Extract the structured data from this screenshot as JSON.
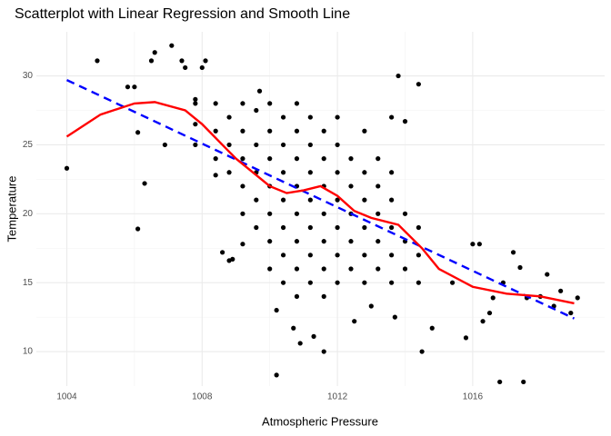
{
  "chart_data": {
    "type": "scatter",
    "title": "Scatterplot with Linear Regression and Smooth Line",
    "x_label": "Atmospheric Pressure",
    "y_label": "Temperature",
    "xlim": [
      1003.1,
      1019.9
    ],
    "ylim": [
      7.5,
      33.2
    ],
    "xticks": [
      1004,
      1008,
      1012,
      1016
    ],
    "yticks": [
      10,
      15,
      20,
      25,
      30
    ],
    "grid": true,
    "point_color": "#000000",
    "points": [
      [
        1004,
        23.3
      ],
      [
        1004.9,
        31.1
      ],
      [
        1005.8,
        29.2
      ],
      [
        1006,
        29.2
      ],
      [
        1006.1,
        25.9
      ],
      [
        1006.1,
        18.9
      ],
      [
        1006.3,
        22.2
      ],
      [
        1006.5,
        31.1
      ],
      [
        1006.6,
        31.7
      ],
      [
        1006.9,
        25
      ],
      [
        1007.1,
        32.2
      ],
      [
        1007.4,
        31.1
      ],
      [
        1007.5,
        30.6
      ],
      [
        1007.8,
        28.3
      ],
      [
        1008,
        30.6
      ],
      [
        1008.1,
        31.1
      ],
      [
        1008.4,
        22.8
      ],
      [
        1008.6,
        17.2
      ],
      [
        1008.9,
        16.7
      ],
      [
        1008.8,
        16.6
      ],
      [
        1009.2,
        17.8
      ],
      [
        1009.7,
        28.9
      ],
      [
        1010.2,
        13
      ],
      [
        1010.2,
        8.3
      ],
      [
        1010.7,
        11.7
      ],
      [
        1010.9,
        10.6
      ],
      [
        1011.3,
        11.1
      ],
      [
        1011.6,
        10
      ],
      [
        1012.5,
        12.2
      ],
      [
        1013,
        13.3
      ],
      [
        1013.7,
        12.5
      ],
      [
        1014.5,
        10
      ],
      [
        1014.4,
        29.4
      ],
      [
        1013.8,
        30
      ],
      [
        1014.8,
        11.7
      ],
      [
        1015.4,
        15
      ],
      [
        1015.8,
        11
      ],
      [
        1016,
        17.8
      ],
      [
        1016.2,
        17.8
      ],
      [
        1016.3,
        12.2
      ],
      [
        1016.5,
        12.8
      ],
      [
        1016.8,
        7.8
      ],
      [
        1016.9,
        15
      ],
      [
        1017.2,
        17.2
      ],
      [
        1017.5,
        7.8
      ],
      [
        1017.6,
        13.9
      ],
      [
        1018,
        14
      ],
      [
        1018.4,
        13.3
      ],
      [
        1018.9,
        12.8
      ],
      [
        1019.1,
        13.9
      ],
      [
        1018.6,
        14.4
      ],
      [
        1018.2,
        15.6
      ],
      [
        1017.4,
        16.1
      ],
      [
        1016.6,
        13.9
      ],
      [
        1009.2,
        20
      ],
      [
        1009.2,
        22
      ],
      [
        1009.2,
        24
      ],
      [
        1009.2,
        26
      ],
      [
        1009.2,
        28
      ],
      [
        1009.6,
        19
      ],
      [
        1009.6,
        21
      ],
      [
        1009.6,
        23
      ],
      [
        1009.6,
        25
      ],
      [
        1009.6,
        27.5
      ],
      [
        1010,
        16
      ],
      [
        1010,
        18
      ],
      [
        1010,
        20
      ],
      [
        1010,
        22
      ],
      [
        1010,
        24
      ],
      [
        1010,
        26
      ],
      [
        1010,
        28
      ],
      [
        1010.4,
        15
      ],
      [
        1010.4,
        17
      ],
      [
        1010.4,
        19
      ],
      [
        1010.4,
        21
      ],
      [
        1010.4,
        23
      ],
      [
        1010.4,
        25
      ],
      [
        1010.4,
        27
      ],
      [
        1010.8,
        14
      ],
      [
        1010.8,
        16
      ],
      [
        1010.8,
        18
      ],
      [
        1010.8,
        20
      ],
      [
        1010.8,
        22
      ],
      [
        1010.8,
        24
      ],
      [
        1010.8,
        26
      ],
      [
        1010.8,
        28
      ],
      [
        1011.2,
        15
      ],
      [
        1011.2,
        17
      ],
      [
        1011.2,
        19
      ],
      [
        1011.2,
        21
      ],
      [
        1011.2,
        23
      ],
      [
        1011.2,
        25
      ],
      [
        1011.2,
        27
      ],
      [
        1011.6,
        14
      ],
      [
        1011.6,
        16
      ],
      [
        1011.6,
        18
      ],
      [
        1011.6,
        20
      ],
      [
        1011.6,
        22
      ],
      [
        1011.6,
        24
      ],
      [
        1011.6,
        26
      ],
      [
        1012,
        15
      ],
      [
        1012,
        17
      ],
      [
        1012,
        19
      ],
      [
        1012,
        21
      ],
      [
        1012,
        23
      ],
      [
        1012,
        25
      ],
      [
        1012,
        27
      ],
      [
        1012.4,
        16
      ],
      [
        1012.4,
        18
      ],
      [
        1012.4,
        20
      ],
      [
        1012.4,
        22
      ],
      [
        1012.4,
        24
      ],
      [
        1012.8,
        15
      ],
      [
        1012.8,
        17
      ],
      [
        1012.8,
        19
      ],
      [
        1012.8,
        21
      ],
      [
        1012.8,
        23
      ],
      [
        1012.8,
        26
      ],
      [
        1013.2,
        16
      ],
      [
        1013.2,
        18
      ],
      [
        1013.2,
        20
      ],
      [
        1013.2,
        22
      ],
      [
        1013.2,
        24
      ],
      [
        1013.6,
        15
      ],
      [
        1013.6,
        17
      ],
      [
        1013.6,
        19
      ],
      [
        1013.6,
        21
      ],
      [
        1013.6,
        23
      ],
      [
        1013.6,
        27
      ],
      [
        1014,
        16
      ],
      [
        1014,
        18
      ],
      [
        1014,
        20
      ],
      [
        1014,
        26.7
      ],
      [
        1014.4,
        15
      ],
      [
        1014.4,
        17
      ],
      [
        1014.4,
        19
      ],
      [
        1008.4,
        24
      ],
      [
        1008.4,
        26
      ],
      [
        1008.4,
        28
      ],
      [
        1008.8,
        23
      ],
      [
        1008.8,
        25
      ],
      [
        1008.8,
        27
      ],
      [
        1007.8,
        25
      ],
      [
        1007.8,
        26.5
      ],
      [
        1007.8,
        28
      ]
    ],
    "lines": [
      {
        "color": "#0000ff",
        "dashed": true,
        "x": [
          1004,
          1019
        ],
        "y": [
          29.7,
          12.4
        ]
      },
      {
        "color": "#ff0000",
        "dashed": false,
        "x": [
          1004,
          1005,
          1006,
          1006.6,
          1007.5,
          1008,
          1009,
          1010,
          1010.5,
          1011,
          1011.5,
          1012,
          1012.5,
          1013,
          1013.8,
          1014.5,
          1015,
          1016,
          1017,
          1018,
          1019
        ],
        "y": [
          25.6,
          27.2,
          28.0,
          28.1,
          27.5,
          26.5,
          24,
          22,
          21.5,
          21.7,
          22,
          21.3,
          20.2,
          19.7,
          19.2,
          17.5,
          16,
          14.7,
          14.2,
          14,
          13.5
        ]
      }
    ]
  }
}
